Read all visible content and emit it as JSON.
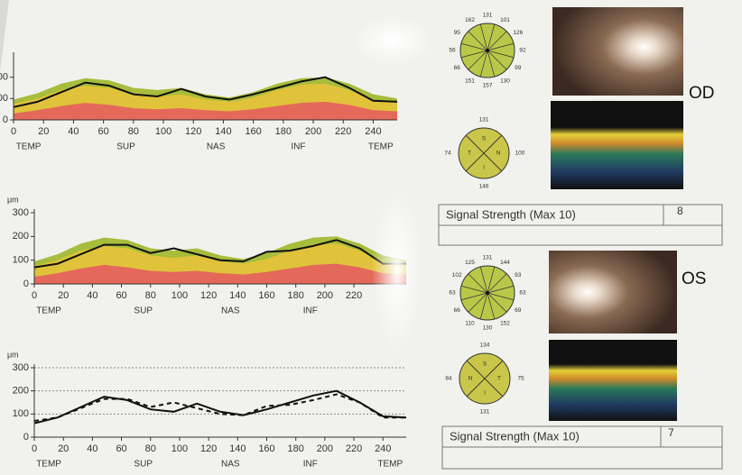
{
  "chart_data": [
    {
      "type": "line",
      "xlim": [
        0,
        256
      ],
      "ylim": [
        0,
        300
      ],
      "xticks": [
        0,
        20,
        40,
        60,
        80,
        100,
        120,
        140,
        160,
        180,
        200,
        220,
        240
      ],
      "yticks": [
        0,
        100,
        200
      ],
      "x": [
        0,
        16,
        32,
        48,
        64,
        80,
        96,
        112,
        128,
        144,
        160,
        176,
        192,
        208,
        224,
        240,
        256
      ],
      "series": [
        {
          "kind": "area",
          "color": "#a7bd3c",
          "values": [
            95,
            125,
            170,
            195,
            185,
            150,
            140,
            150,
            120,
            105,
            130,
            170,
            195,
            200,
            170,
            120,
            100
          ]
        },
        {
          "kind": "area",
          "color": "#e0c33a",
          "values": [
            75,
            100,
            140,
            160,
            150,
            120,
            110,
            120,
            95,
            85,
            105,
            140,
            165,
            170,
            140,
            95,
            80
          ]
        },
        {
          "kind": "area",
          "color": "#e4695a",
          "values": [
            30,
            45,
            65,
            80,
            70,
            55,
            50,
            55,
            45,
            40,
            50,
            65,
            80,
            85,
            70,
            45,
            40
          ]
        },
        {
          "kind": "line",
          "color": "#111111",
          "values": [
            60,
            85,
            130,
            175,
            160,
            120,
            110,
            145,
            110,
            95,
            120,
            150,
            180,
            200,
            150,
            90,
            85
          ]
        }
      ],
      "regions": [
        "TEMP",
        "SUP",
        "NAS",
        "INF",
        "TEMP"
      ]
    },
    {
      "type": "line",
      "xlim": [
        0,
        256
      ],
      "ylim": [
        0,
        300
      ],
      "xticks": [
        0,
        20,
        40,
        60,
        80,
        100,
        120,
        140,
        160,
        180,
        200,
        220
      ],
      "yticks": [
        0,
        100,
        200,
        300
      ],
      "ylabel": "μm",
      "x": [
        0,
        16,
        32,
        48,
        64,
        80,
        96,
        112,
        128,
        144,
        160,
        176,
        192,
        208,
        224,
        240,
        256
      ],
      "series": [
        {
          "kind": "area",
          "color": "#a7bd3c",
          "values": [
            95,
            125,
            170,
            195,
            185,
            150,
            140,
            150,
            120,
            105,
            130,
            170,
            195,
            200,
            170,
            120,
            100
          ]
        },
        {
          "kind": "area",
          "color": "#e0c33a",
          "values": [
            75,
            100,
            140,
            160,
            150,
            120,
            110,
            120,
            95,
            85,
            105,
            140,
            165,
            170,
            140,
            95,
            80
          ]
        },
        {
          "kind": "area",
          "color": "#e4695a",
          "values": [
            30,
            45,
            65,
            80,
            70,
            55,
            50,
            55,
            45,
            40,
            50,
            65,
            80,
            85,
            70,
            45,
            40
          ]
        },
        {
          "kind": "line",
          "color": "#111111",
          "values": [
            70,
            85,
            125,
            165,
            165,
            130,
            150,
            125,
            100,
            95,
            135,
            140,
            160,
            185,
            150,
            85,
            85
          ]
        }
      ],
      "regions": [
        "TEMP",
        "SUP",
        "NAS",
        "INF"
      ]
    },
    {
      "type": "line",
      "xlim": [
        0,
        256
      ],
      "ylim": [
        0,
        300
      ],
      "xticks": [
        0,
        20,
        40,
        60,
        80,
        100,
        120,
        140,
        160,
        180,
        200,
        220,
        240
      ],
      "yticks": [
        0,
        100,
        200,
        300
      ],
      "ylabel": "μm",
      "x": [
        0,
        16,
        32,
        48,
        64,
        80,
        96,
        112,
        128,
        144,
        160,
        176,
        192,
        208,
        224,
        240,
        256
      ],
      "series": [
        {
          "kind": "line",
          "color": "#111111",
          "values": [
            60,
            85,
            130,
            175,
            160,
            120,
            110,
            145,
            110,
            95,
            120,
            150,
            180,
            200,
            150,
            90,
            85
          ]
        },
        {
          "kind": "line",
          "color": "#111111",
          "dash": true,
          "values": [
            70,
            85,
            125,
            165,
            165,
            130,
            150,
            125,
            100,
            95,
            135,
            140,
            160,
            185,
            150,
            85,
            85
          ]
        }
      ],
      "regions": [
        "TEMP",
        "SUP",
        "NAS",
        "INF",
        "TEMP"
      ]
    }
  ],
  "od": {
    "eye_label": "OD",
    "clock": [
      131,
      101,
      126,
      92,
      99,
      130,
      157,
      151,
      66,
      56,
      95,
      162
    ],
    "quadrants": [
      {
        "letter": "S",
        "value": 131
      },
      {
        "letter": "N",
        "value": 100
      },
      {
        "letter": "I",
        "value": 146
      },
      {
        "letter": "T",
        "value": 74
      }
    ],
    "signal_label": "Signal Strength (Max 10)",
    "signal_value": 8
  },
  "os": {
    "eye_label": "OS",
    "clock": [
      131,
      144,
      93,
      63,
      69,
      152,
      130,
      110,
      66,
      63,
      102,
      125
    ],
    "quadrants": [
      {
        "letter": "S",
        "value": 134
      },
      {
        "letter": "T",
        "value": 75
      },
      {
        "letter": "I",
        "value": 131
      },
      {
        "letter": "N",
        "value": 84
      }
    ],
    "signal_label": "Signal Strength (Max 10)",
    "signal_value": 7
  }
}
